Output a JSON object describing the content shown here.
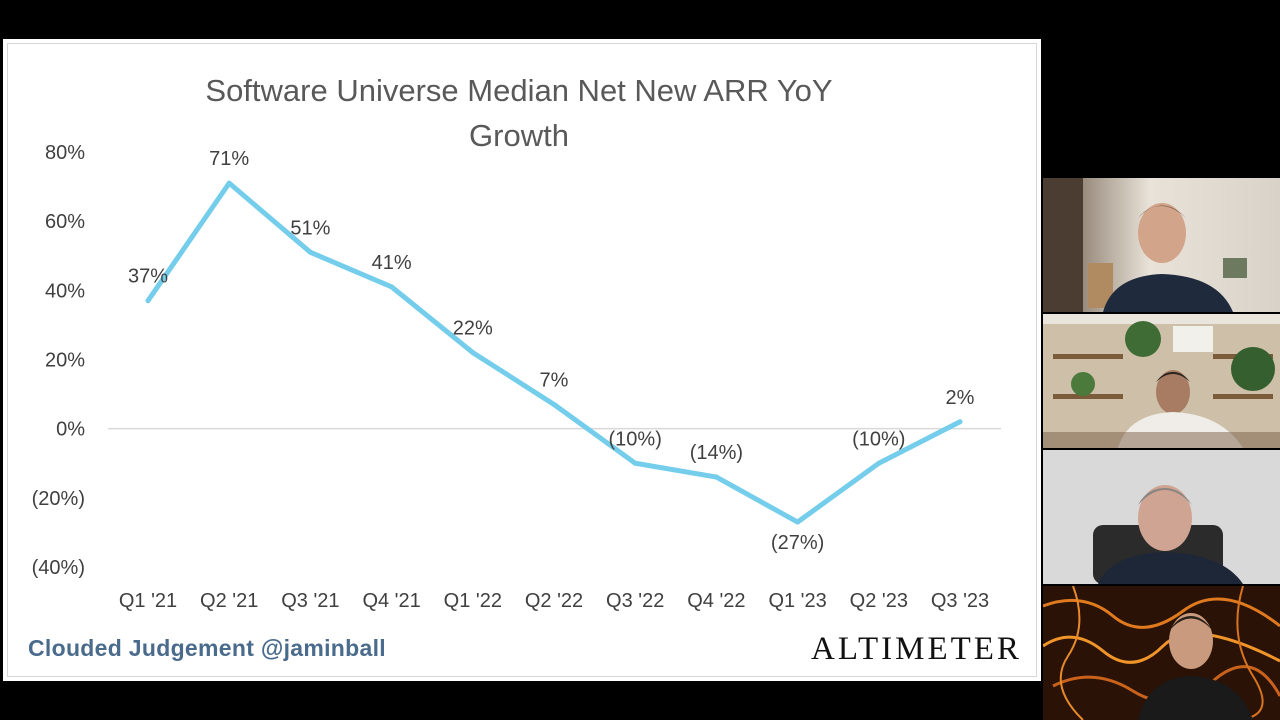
{
  "slide": {
    "footer_left": "Clouded Judgement @jaminball",
    "footer_right": "ALTIMETER"
  },
  "colors": {
    "line": "#74cdeb",
    "zero_axis": "#d9d9d9",
    "footer_left": "#4a6b8c"
  },
  "chart_data": {
    "type": "line",
    "title": "Software Universe Median Net New ARR YoY Growth",
    "title_lines": [
      "Software Universe Median Net New ARR YoY",
      "Growth"
    ],
    "categories": [
      "Q1 '21",
      "Q2 '21",
      "Q3 '21",
      "Q4 '21",
      "Q1 '22",
      "Q2 '22",
      "Q3 '22",
      "Q4 '22",
      "Q1 '23",
      "Q2 '23",
      "Q3 '23"
    ],
    "series": [
      {
        "name": "Median Net New ARR YoY Growth",
        "values": [
          37,
          71,
          51,
          41,
          22,
          7,
          -10,
          -14,
          -27,
          -10,
          2
        ],
        "labels": [
          "37%",
          "71%",
          "51%",
          "41%",
          "22%",
          "7%",
          "(10%)",
          "(14%)",
          "(27%)",
          "(10%)",
          "2%"
        ]
      }
    ],
    "ylim": [
      -40,
      80
    ],
    "yticks": [
      80,
      60,
      40,
      20,
      0,
      -20,
      -40
    ],
    "ytick_labels": [
      "80%",
      "60%",
      "40%",
      "20%",
      "0%",
      "(20%)",
      "(40%)"
    ],
    "xlabel": "",
    "ylabel": "",
    "grid": false
  },
  "participants": [
    {
      "name": "participant-1"
    },
    {
      "name": "participant-2"
    },
    {
      "name": "participant-3"
    },
    {
      "name": "participant-4"
    }
  ]
}
